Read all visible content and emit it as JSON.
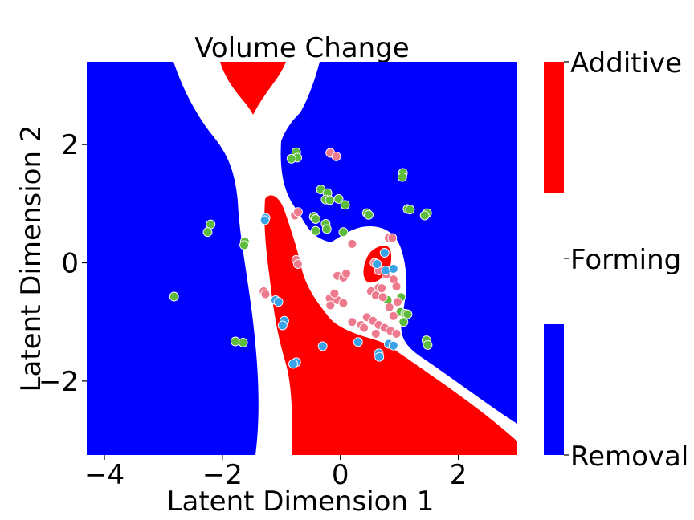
{
  "chart_data": {
    "type": "scatter",
    "title": "Volume Change",
    "xlabel": "Latent Dimension 1",
    "ylabel": "Latent Dimension 2",
    "xlim": [
      -4.3,
      3.0
    ],
    "ylim": [
      -3.25,
      3.4
    ],
    "xticks": [
      -4,
      -2,
      0,
      2
    ],
    "yticks": [
      -2,
      0,
      2
    ],
    "xtick_labels": [
      "−4",
      "−2",
      "0",
      "2"
    ],
    "ytick_labels": [
      "−2",
      "0",
      "2"
    ],
    "grid": false,
    "background": "decision-region map (blue = Removal, white = Forming, red = Additive)",
    "colorbar": {
      "labels": [
        "Additive",
        "Forming",
        "Removal"
      ],
      "colors": {
        "Additive": "#ff0000",
        "Forming": "#ffffff",
        "Removal": "#0000ff"
      }
    },
    "colors": {
      "green_points": "#5dbb3d",
      "pink_points": "#ee7a8e",
      "blue_points": "#3aa2e6"
    },
    "series": [
      {
        "color": "green",
        "points": [
          [
            -0.75,
            1.87
          ],
          [
            -0.73,
            1.78
          ],
          [
            -0.83,
            1.76
          ],
          [
            -0.33,
            1.24
          ],
          [
            -0.22,
            1.18
          ],
          [
            -0.25,
            1.07
          ],
          [
            -0.18,
            1.06
          ],
          [
            -0.03,
            1.08
          ],
          [
            0.08,
            0.98
          ],
          [
            0.45,
            0.84
          ],
          [
            0.48,
            0.81
          ],
          [
            -0.45,
            0.78
          ],
          [
            -0.42,
            0.74
          ],
          [
            -0.25,
            0.66
          ],
          [
            -0.23,
            0.57
          ],
          [
            -0.42,
            0.54
          ],
          [
            0.05,
            0.52
          ],
          [
            1.06,
            1.52
          ],
          [
            1.05,
            1.45
          ],
          [
            1.14,
            0.91
          ],
          [
            1.18,
            0.9
          ],
          [
            1.47,
            0.84
          ],
          [
            1.43,
            0.8
          ],
          [
            -2.2,
            0.65
          ],
          [
            -2.25,
            0.52
          ],
          [
            -1.62,
            0.36
          ],
          [
            -1.63,
            0.3
          ],
          [
            -2.82,
            -0.57
          ],
          [
            -1.78,
            -1.33
          ],
          [
            -1.65,
            -1.35
          ],
          [
            1.03,
            -0.58
          ],
          [
            0.8,
            -0.63
          ],
          [
            1.02,
            -0.83
          ],
          [
            1.1,
            -0.86
          ],
          [
            1.14,
            -0.87
          ],
          [
            1.07,
            -1.0
          ],
          [
            1.46,
            -1.31
          ],
          [
            1.48,
            -1.39
          ]
        ]
      },
      {
        "color": "pink",
        "points": [
          [
            -0.17,
            1.86
          ],
          [
            -0.07,
            1.8
          ],
          [
            -0.77,
            0.8
          ],
          [
            -0.72,
            0.86
          ],
          [
            -0.75,
            0.05
          ],
          [
            -0.72,
            -0.02
          ],
          [
            -1.3,
            -0.48
          ],
          [
            -1.27,
            -0.53
          ],
          [
            0.58,
            0.0
          ],
          [
            0.82,
            0.42
          ],
          [
            0.88,
            0.42
          ],
          [
            -0.05,
            -0.22
          ],
          [
            0.05,
            -0.25
          ],
          [
            0.1,
            -0.18
          ],
          [
            0.2,
            0.32
          ],
          [
            0.65,
            -0.13
          ],
          [
            0.78,
            -0.2
          ],
          [
            0.9,
            -0.28
          ],
          [
            0.65,
            -0.42
          ],
          [
            0.52,
            -0.48
          ],
          [
            0.7,
            -0.43
          ],
          [
            -0.18,
            -0.6
          ],
          [
            -0.17,
            -0.72
          ],
          [
            -0.05,
            -0.63
          ],
          [
            0.05,
            -0.68
          ],
          [
            -0.1,
            -0.52
          ],
          [
            0.6,
            -0.55
          ],
          [
            0.72,
            -0.58
          ],
          [
            0.95,
            -0.4
          ],
          [
            0.97,
            -0.66
          ],
          [
            0.83,
            -0.75
          ],
          [
            0.9,
            -0.9
          ],
          [
            0.45,
            -0.92
          ],
          [
            0.55,
            -0.98
          ],
          [
            0.65,
            -1.05
          ],
          [
            0.2,
            -1.0
          ],
          [
            0.35,
            -1.05
          ],
          [
            0.4,
            -1.1
          ],
          [
            0.75,
            -1.1
          ],
          [
            0.85,
            -1.15
          ],
          [
            0.6,
            -1.2
          ],
          [
            0.95,
            -1.2
          ]
        ]
      },
      {
        "color": "blue",
        "points": [
          [
            -1.27,
            0.76
          ],
          [
            -1.28,
            0.72
          ],
          [
            0.62,
            -0.02
          ],
          [
            0.75,
            0.17
          ],
          [
            0.77,
            -0.13
          ],
          [
            0.9,
            -0.1
          ],
          [
            -1.1,
            -0.63
          ],
          [
            -1.05,
            -0.66
          ],
          [
            -0.95,
            -0.98
          ],
          [
            -0.98,
            -1.06
          ],
          [
            -0.75,
            -1.68
          ],
          [
            -0.8,
            -1.71
          ],
          [
            -0.3,
            -1.41
          ],
          [
            0.3,
            -1.34
          ],
          [
            0.65,
            -1.53
          ],
          [
            0.66,
            -1.59
          ],
          [
            0.82,
            -1.37
          ],
          [
            0.9,
            -1.4
          ]
        ]
      }
    ]
  }
}
